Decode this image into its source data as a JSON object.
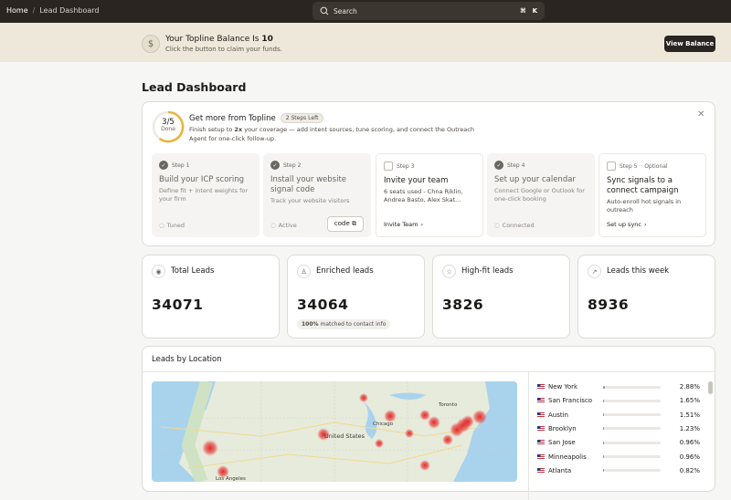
{
  "topbar": {
    "breadcrumb": [
      "Home",
      "Lead Dashboard"
    ],
    "search": {
      "placeholder": "Search",
      "shortcut": [
        "⌘",
        "K"
      ]
    }
  },
  "banner": {
    "title_prefix": "Your Topline Balance Is",
    "balance": "10",
    "subtitle": "Click the button to claim your funds.",
    "button": "View Balance"
  },
  "page_title": "Lead Dashboard",
  "onboarding": {
    "progress_label": "3/5",
    "progress_status": "Done",
    "heading": "Get more from Topline",
    "badge": "2 Steps Left",
    "desc_prefix": "Finish setup to",
    "desc_bold": "2x",
    "desc_suffix": "your coverage — add intent sources, tune scoring, and connect the Outreach Agent for one-click follow-up.",
    "steps": [
      {
        "step": "Step 1",
        "title": "Build your ICP scoring",
        "desc": "Define fit + intent weights for your firm",
        "footer": "Tuned",
        "done": true
      },
      {
        "step": "Step 2",
        "title": "Install your website signal code",
        "desc": "Track your website visitors",
        "footer": "Active",
        "button": "code",
        "done": true
      },
      {
        "step": "Step 3",
        "title": "Invite your team",
        "desc": "6 seats used - Chna Riklin, Andrea Basto, Alex Skat...",
        "footer": "Invite Team",
        "done": false
      },
      {
        "step": "Step 4",
        "title": "Set up your calendar",
        "desc": "Connect Google or Outlook for one-click booking",
        "footer": "Connected",
        "done": true
      },
      {
        "step": "Step 5",
        "tag": "· Optional",
        "title": "Sync signals to a connect campaign",
        "desc": "Auto-enroll hot signals in outreach",
        "footer": "Set up sync",
        "done": false
      }
    ]
  },
  "stats": [
    {
      "label": "Total Leads",
      "value": "34071"
    },
    {
      "label": "Enriched leads",
      "value": "34064",
      "badge_bold": "100%",
      "badge_text": "matched to contact info"
    },
    {
      "label": "High-fit leads",
      "value": "3826"
    },
    {
      "label": "Leads this week",
      "value": "8936"
    }
  ],
  "location": {
    "title": "Leads by Location",
    "map_labels": [
      "Toronto",
      "Chicago",
      "United States",
      "Los Angeles"
    ],
    "rows": [
      {
        "city": "New York",
        "share": 2.88,
        "share_label": "2.88%"
      },
      {
        "city": "San Francisco",
        "share": 1.65,
        "share_label": "1.65%"
      },
      {
        "city": "Austin",
        "share": 1.51,
        "share_label": "1.51%"
      },
      {
        "city": "Brooklyn",
        "share": 1.23,
        "share_label": "1.23%"
      },
      {
        "city": "San Jose",
        "share": 0.96,
        "share_label": "0.96%"
      },
      {
        "city": "Minneapolis",
        "share": 0.96,
        "share_label": "0.96%"
      },
      {
        "city": "Atlanta",
        "share": 0.82,
        "share_label": "0.82%"
      }
    ]
  }
}
